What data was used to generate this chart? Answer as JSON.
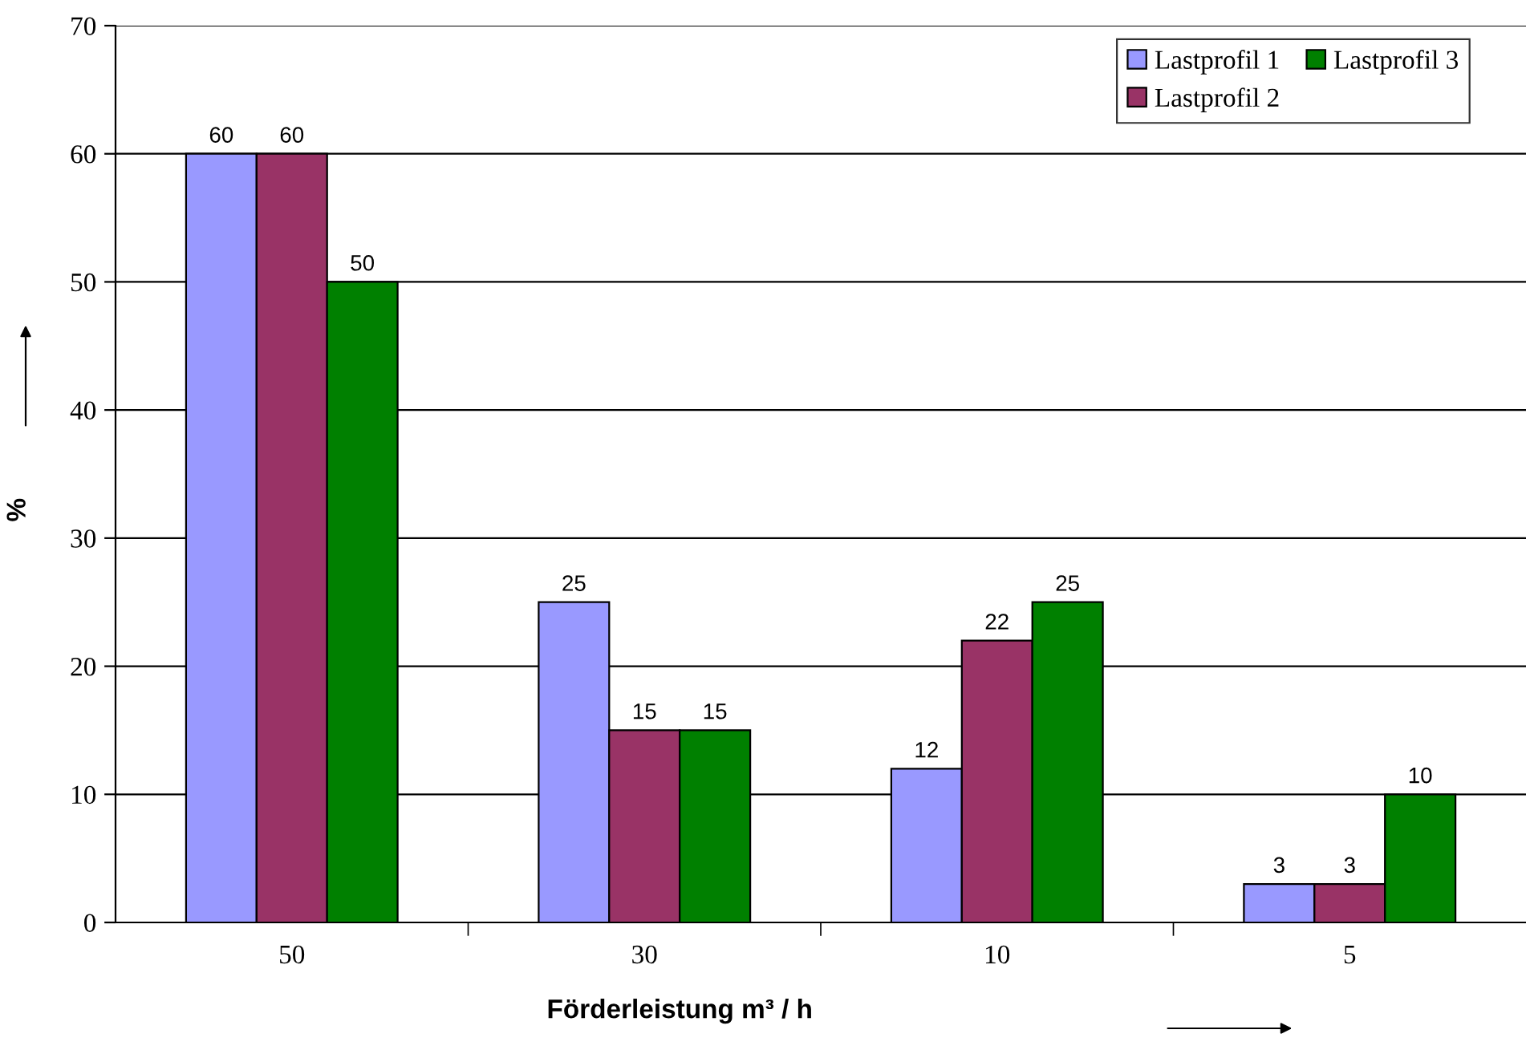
{
  "chart_data": {
    "type": "bar",
    "xlabel": "Förderleistung m³ / h",
    "ylabel": "%",
    "categories": [
      "50",
      "30",
      "10",
      "5"
    ],
    "series": [
      {
        "name": "Lastprofil 1",
        "color": "#9999ff",
        "values": [
          60,
          25,
          12,
          3
        ]
      },
      {
        "name": "Lastprofil 2",
        "color": "#993366",
        "values": [
          60,
          15,
          22,
          3
        ]
      },
      {
        "name": "Lastprofil 3",
        "color": "#008000",
        "values": [
          50,
          15,
          25,
          10
        ]
      }
    ],
    "ylim": [
      0,
      70
    ],
    "yticks": [
      0,
      10,
      20,
      30,
      40,
      50,
      60,
      70
    ],
    "grid": "y",
    "legend": "top right",
    "data_labels": true
  }
}
